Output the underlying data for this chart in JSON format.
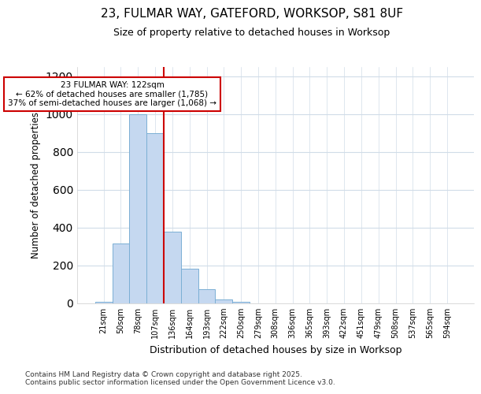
{
  "title_line1": "23, FULMAR WAY, GATEFORD, WORKSOP, S81 8UF",
  "title_line2": "Size of property relative to detached houses in Worksop",
  "xlabel": "Distribution of detached houses by size in Worksop",
  "ylabel": "Number of detached properties",
  "categories": [
    "21sqm",
    "50sqm",
    "78sqm",
    "107sqm",
    "136sqm",
    "164sqm",
    "193sqm",
    "222sqm",
    "250sqm",
    "279sqm",
    "308sqm",
    "336sqm",
    "365sqm",
    "393sqm",
    "422sqm",
    "451sqm",
    "479sqm",
    "508sqm",
    "537sqm",
    "565sqm",
    "594sqm"
  ],
  "values": [
    8,
    315,
    1000,
    900,
    380,
    185,
    75,
    22,
    8,
    0,
    0,
    0,
    0,
    0,
    0,
    0,
    0,
    0,
    0,
    0,
    0
  ],
  "bar_color": "#c5d8f0",
  "bar_edge_color": "#7bafd4",
  "vline_x_index": 3.5,
  "vline_color": "#cc0000",
  "annotation_text": "23 FULMAR WAY: 122sqm\n← 62% of detached houses are smaller (1,785)\n37% of semi-detached houses are larger (1,068) →",
  "annotation_box_facecolor": "#ffffff",
  "annotation_box_edgecolor": "#cc0000",
  "ylim": [
    0,
    1250
  ],
  "yticks": [
    0,
    200,
    400,
    600,
    800,
    1000,
    1200
  ],
  "footer_line1": "Contains HM Land Registry data © Crown copyright and database right 2025.",
  "footer_line2": "Contains public sector information licensed under the Open Government Licence v3.0.",
  "bg_color": "#ffffff",
  "plot_bg_color": "#ffffff",
  "grid_color": "#d0dce8"
}
